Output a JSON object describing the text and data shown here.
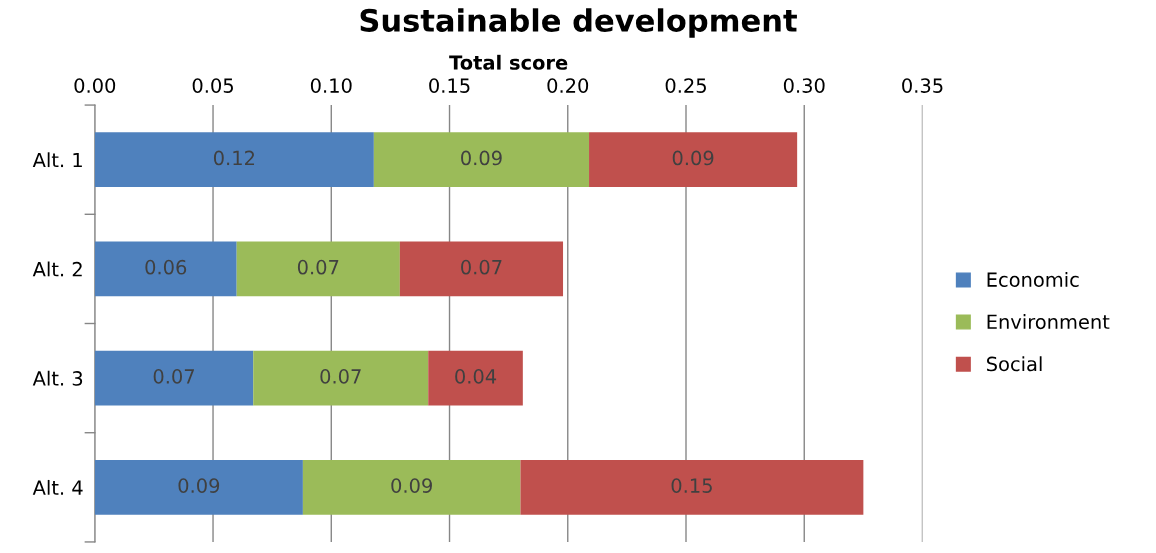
{
  "chart_data": {
    "type": "bar",
    "orientation": "horizontal",
    "stacked": true,
    "title": "Sustainable development",
    "xlabel": "Total score",
    "categories": [
      "Alt. 1",
      "Alt. 2",
      "Alt. 3",
      "Alt. 4"
    ],
    "series": [
      {
        "name": "Economic",
        "color": "#4f81bd",
        "values": [
          0.118,
          0.06,
          0.067,
          0.088
        ],
        "value_labels": [
          "0.12",
          "0.06",
          "0.07",
          "0.09"
        ]
      },
      {
        "name": "Environment",
        "color": "#9bbb59",
        "values": [
          0.091,
          0.069,
          0.074,
          0.092
        ],
        "value_labels": [
          "0.09",
          "0.07",
          "0.07",
          "0.09"
        ]
      },
      {
        "name": "Social",
        "color": "#c0504d",
        "values": [
          0.088,
          0.069,
          0.04,
          0.145
        ],
        "value_labels": [
          "0.09",
          "0.07",
          "0.04",
          "0.15"
        ]
      }
    ],
    "xlim": [
      0,
      0.35
    ],
    "xticks": [
      {
        "value": 0,
        "label": "0.00"
      },
      {
        "value": 0.05,
        "label": "0.05"
      },
      {
        "value": 0.1,
        "label": "0.10"
      },
      {
        "value": 0.15,
        "label": "0.15"
      },
      {
        "value": 0.2,
        "label": "0.20"
      },
      {
        "value": 0.25,
        "label": "0.25"
      },
      {
        "value": 0.3,
        "label": "0.30"
      },
      {
        "value": 0.35,
        "label": "0.35"
      }
    ],
    "grid": "x",
    "legend": "right"
  }
}
